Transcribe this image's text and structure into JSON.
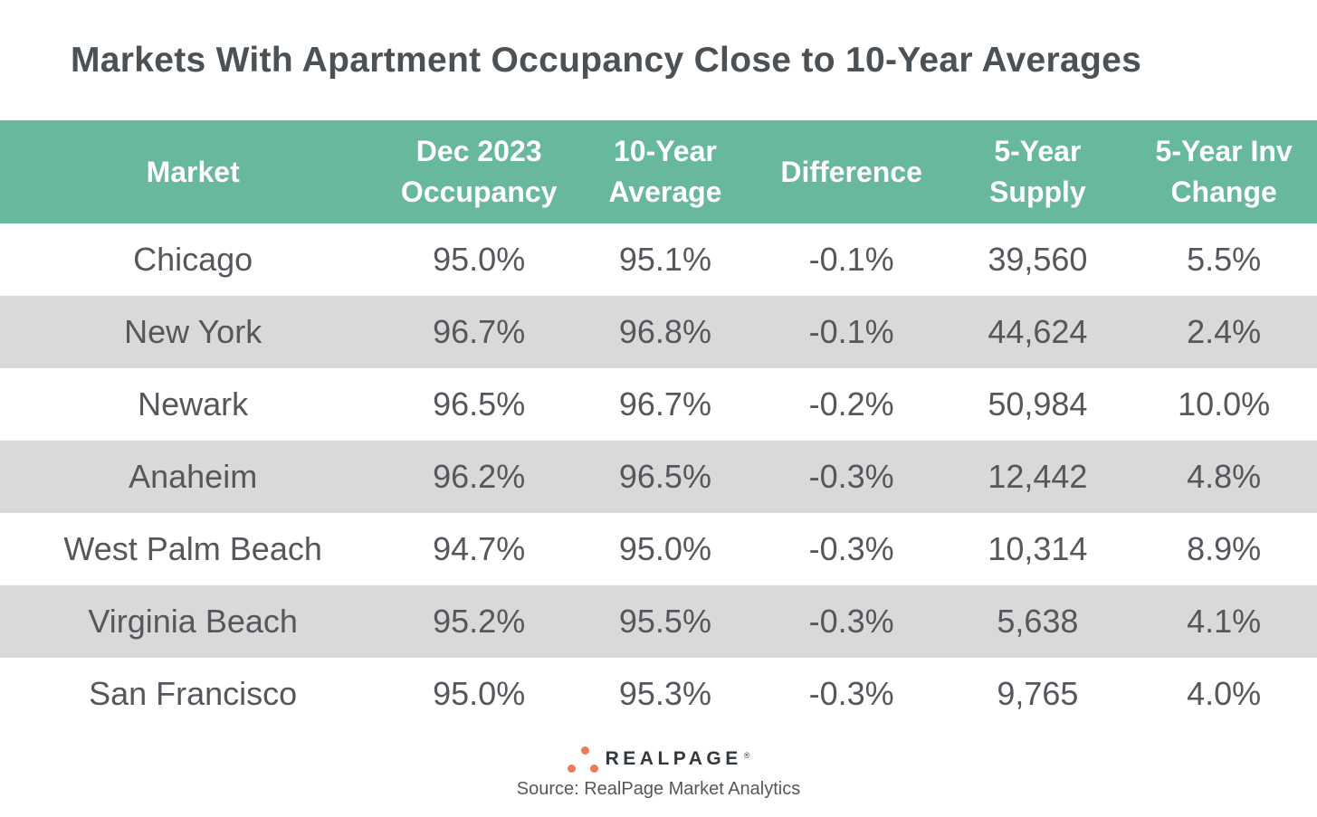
{
  "chart_data": {
    "type": "table",
    "title": "Markets With Apartment Occupancy Close to 10-Year Averages",
    "columns": [
      "Market",
      "Dec 2023 Occupancy",
      "10-Year Average",
      "Difference",
      "5-Year Supply",
      "5-Year Inv Change"
    ],
    "rows": [
      [
        "Chicago",
        "95.0%",
        "95.1%",
        "-0.1%",
        "39,560",
        "5.5%"
      ],
      [
        "New York",
        "96.7%",
        "96.8%",
        "-0.1%",
        "44,624",
        "2.4%"
      ],
      [
        "Newark",
        "96.5%",
        "96.7%",
        "-0.2%",
        "50,984",
        "10.0%"
      ],
      [
        "Anaheim",
        "96.2%",
        "96.5%",
        "-0.3%",
        "12,442",
        "4.8%"
      ],
      [
        "West Palm Beach",
        "94.7%",
        "95.0%",
        "-0.3%",
        "10,314",
        "8.9%"
      ],
      [
        "Virginia Beach",
        "95.2%",
        "95.5%",
        "-0.3%",
        "5,638",
        "4.1%"
      ],
      [
        "San Francisco",
        "95.0%",
        "95.3%",
        "-0.3%",
        "9,765",
        "4.0%"
      ]
    ],
    "source": "Source: RealPage Market Analytics",
    "layout_hints": {
      "header_bg": "#68B79F",
      "row_striping": "rows 2,4,6 gray",
      "gridlines": "off"
    }
  },
  "header": {
    "cells": [
      {
        "line1": "Market",
        "line2": ""
      },
      {
        "line1": "Dec 2023",
        "line2": "Occupancy"
      },
      {
        "line1": "10-Year",
        "line2": "Average"
      },
      {
        "line1": "Difference",
        "line2": ""
      },
      {
        "line1": "5-Year",
        "line2": "Supply"
      },
      {
        "line1": "5-Year Inv",
        "line2": "Change"
      }
    ]
  },
  "footer": {
    "brand": "REALPAGE",
    "trademark": "®",
    "source": "Source: RealPage Market Analytics",
    "logo_icon": "three-dots-triangle"
  },
  "colors": {
    "header_bg": "#68B79F",
    "header_text": "#FFFFFF",
    "row_alt_bg": "#D9D9D9",
    "body_text": "#54585C",
    "title_text": "#4C5155",
    "logo_dot": "#ED7A59",
    "logo_text": "#33383C"
  }
}
